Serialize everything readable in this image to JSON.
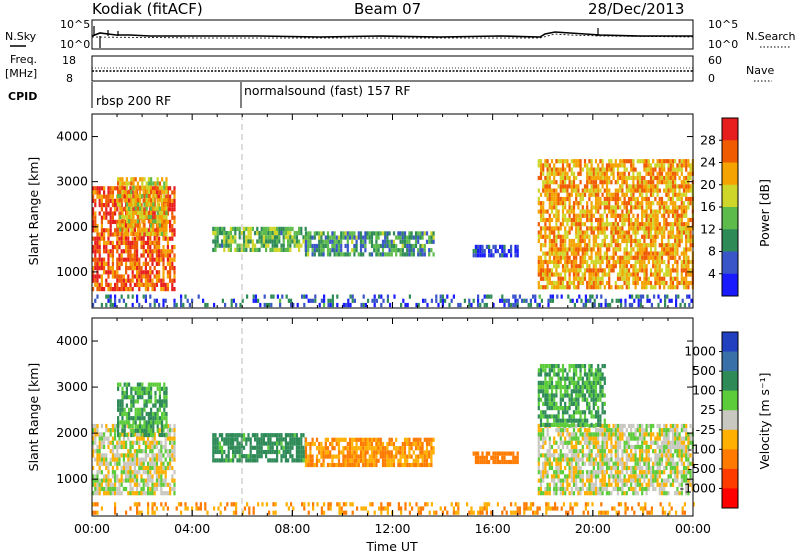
{
  "header": {
    "station": "Kodiak (fitACF)",
    "beam": "Beam 07",
    "date": "28/Dec/2013"
  },
  "summary_panel": {
    "left_labels": {
      "nsky": "N.Sky",
      "freq_line1": "Freq.",
      "freq_line2": "[MHz]",
      "cpid": "CPID"
    },
    "right_labels": {
      "nsearch": "N.Search",
      "nave": "Nave"
    },
    "noise_ticks_left": [
      "10^5",
      "10^0"
    ],
    "noise_ticks_right": [
      "10^5",
      "10^0"
    ],
    "freq_ticks": [
      "18",
      "8"
    ],
    "nave_ticks": [
      "60",
      "0"
    ],
    "cpid_segments": [
      {
        "label": "rbsp 200 RF",
        "start_hour": 0.0
      },
      {
        "label": "normalsound (fast) 157 RF",
        "start_hour": 6.0
      }
    ]
  },
  "chart_data": [
    {
      "type": "heatmap",
      "name": "Power",
      "ylabel": "Slant Range [km]",
      "xlabel": "Time UT",
      "x_unit": "hour UT",
      "xlim": [
        0,
        24
      ],
      "ylim": [
        200,
        4500
      ],
      "xticks": [
        "00:00",
        "04:00",
        "08:00",
        "12:00",
        "16:00",
        "20:00",
        "00:00"
      ],
      "yticks": [
        1000,
        2000,
        3000,
        4000
      ],
      "colorbar": {
        "label": "Power [dB]",
        "ticks": [
          "4",
          "8",
          "12",
          "16",
          "20",
          "24",
          "28"
        ],
        "colors": [
          "#1a1aff",
          "#3a55c8",
          "#2e8b57",
          "#5dbb4b",
          "#cfd62a",
          "#f5a300",
          "#f05a00",
          "#e81e1e"
        ]
      },
      "regions": [
        {
          "t0": 0.0,
          "t1": 3.3,
          "r0": 650,
          "r1": 2900,
          "value": 26
        },
        {
          "t0": 1.0,
          "t1": 3.0,
          "r0": 1800,
          "r1": 3100,
          "value": 20
        },
        {
          "t0": 4.8,
          "t1": 8.5,
          "r0": 1450,
          "r1": 2000,
          "value": 14
        },
        {
          "t0": 8.5,
          "t1": 13.6,
          "r0": 1350,
          "r1": 1900,
          "value": 12
        },
        {
          "t0": 15.2,
          "t1": 17.0,
          "r0": 1400,
          "r1": 1600,
          "value": 6
        },
        {
          "t0": 17.8,
          "t1": 24.0,
          "r0": 650,
          "r1": 3500,
          "value": 22
        },
        {
          "t0": 0.0,
          "t1": 24.0,
          "r0": 250,
          "r1": 500,
          "value": 8
        }
      ]
    },
    {
      "type": "heatmap",
      "name": "Velocity",
      "ylabel": "Slant Range [km]",
      "xlabel": "Time UT",
      "x_unit": "hour UT",
      "xlim": [
        0,
        24
      ],
      "ylim": [
        200,
        4500
      ],
      "xticks": [
        "00:00",
        "04:00",
        "08:00",
        "12:00",
        "16:00",
        "20:00",
        "00:00"
      ],
      "yticks": [
        1000,
        2000,
        3000,
        4000
      ],
      "colorbar": {
        "label": "Velocity [m s^-1]",
        "ticks": [
          "1000",
          "500",
          "100",
          "25",
          "-25",
          "-100",
          "-500",
          "-1000"
        ],
        "colors": [
          "#2040c0",
          "#3a70a8",
          "#2e8b57",
          "#5ccc3a",
          "#c8c8c0",
          "#ffb000",
          "#ff7a00",
          "#ff3c00",
          "#ff0000"
        ]
      },
      "regions": [
        {
          "t0": 0.0,
          "t1": 3.3,
          "r0": 650,
          "r1": 2200,
          "value": 0
        },
        {
          "t0": 1.0,
          "t1": 3.0,
          "r0": 2000,
          "r1": 3100,
          "value": 100
        },
        {
          "t0": 4.8,
          "t1": 8.5,
          "r0": 1450,
          "r1": 2000,
          "value": 150
        },
        {
          "t0": 8.5,
          "t1": 13.6,
          "r0": 1350,
          "r1": 1900,
          "value": -100
        },
        {
          "t0": 15.2,
          "t1": 17.0,
          "r0": 1400,
          "r1": 1600,
          "value": -300
        },
        {
          "t0": 17.8,
          "t1": 24.0,
          "r0": 650,
          "r1": 2200,
          "value": 0
        },
        {
          "t0": 17.8,
          "t1": 20.5,
          "r0": 2200,
          "r1": 3500,
          "value": 100
        },
        {
          "t0": 0.0,
          "t1": 24.0,
          "r0": 250,
          "r1": 500,
          "value": -100
        }
      ]
    }
  ]
}
